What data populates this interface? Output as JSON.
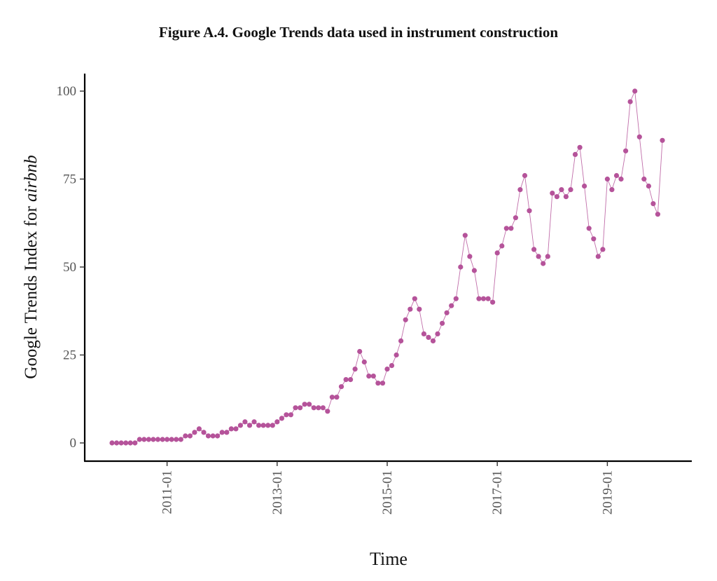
{
  "figure": {
    "title": "Figure A.4. Google Trends data used in instrument construction"
  },
  "chart_data": {
    "type": "line",
    "title": "Figure A.4. Google Trends data used in instrument construction",
    "xlabel": "Time",
    "ylabel_prefix": "Google Trends Index for ",
    "ylabel_term": "airbnb",
    "x_start": "2010-01",
    "x_frequency": "monthly",
    "x_ticks": [
      "2011-01",
      "2013-01",
      "2015-01",
      "2017-01",
      "2019-01"
    ],
    "y_ticks": [
      0,
      25,
      50,
      75,
      100
    ],
    "ylim": [
      0,
      100
    ],
    "grid": false,
    "color": "#b5539a",
    "series": [
      {
        "values": [
          0,
          0,
          0,
          0,
          0,
          0,
          1,
          1,
          1,
          1,
          1,
          1,
          1,
          1,
          1,
          1,
          2,
          2,
          3,
          4,
          3,
          2,
          2,
          2,
          3,
          3,
          4,
          4,
          5,
          6,
          5,
          6,
          5,
          5,
          5,
          5,
          6,
          7,
          8,
          8,
          10,
          10,
          11,
          11,
          10,
          10,
          10,
          9,
          13,
          13,
          16,
          18,
          18,
          21,
          26,
          23,
          19,
          19,
          17,
          17,
          21,
          22,
          25,
          29,
          35,
          38,
          41,
          38,
          31,
          30,
          29,
          31,
          34,
          37,
          39,
          41,
          50,
          59,
          53,
          49,
          41,
          41,
          41,
          40,
          54,
          56,
          61,
          61,
          64,
          72,
          76,
          66,
          55,
          53,
          51,
          53,
          71,
          70,
          72,
          70,
          72,
          82,
          84,
          73,
          61,
          58,
          53,
          55,
          75,
          72,
          76,
          75,
          83,
          97,
          100,
          87,
          75,
          73,
          68,
          65,
          86
        ]
      }
    ]
  }
}
